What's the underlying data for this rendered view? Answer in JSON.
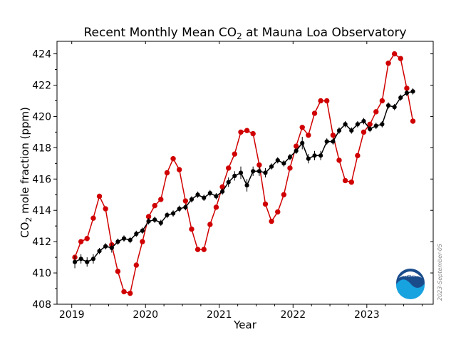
{
  "chart_data": {
    "type": "line",
    "title": "Recent Monthly Mean CO",
    "title_subscript": "2",
    "title_suffix": " at Mauna Loa Observatory",
    "xlabel": "Year",
    "ylabel": "CO",
    "ylabel_subscript": "2",
    "ylabel_suffix": " mole fraction (ppm)",
    "xlim": [
      2018.8,
      2023.9
    ],
    "ylim": [
      408,
      424.8
    ],
    "x_ticks": [
      2019,
      2020,
      2021,
      2022,
      2023
    ],
    "y_ticks": [
      408,
      410,
      412,
      414,
      416,
      418,
      420,
      422,
      424
    ],
    "grid": false,
    "legend": "none",
    "series": [
      {
        "color": "#d00000",
        "marker": "circle",
        "x": [
          2019.042,
          2019.125,
          2019.208,
          2019.292,
          2019.375,
          2019.458,
          2019.542,
          2019.625,
          2019.708,
          2019.792,
          2019.875,
          2019.958,
          2020.042,
          2020.125,
          2020.208,
          2020.292,
          2020.375,
          2020.458,
          2020.542,
          2020.625,
          2020.708,
          2020.792,
          2020.875,
          2020.958,
          2021.042,
          2021.125,
          2021.208,
          2021.292,
          2021.375,
          2021.458,
          2021.542,
          2021.625,
          2021.708,
          2021.792,
          2021.875,
          2021.958,
          2022.042,
          2022.125,
          2022.208,
          2022.292,
          2022.375,
          2022.458,
          2022.542,
          2022.625,
          2022.708,
          2022.792,
          2022.875,
          2022.958,
          2023.042,
          2023.125,
          2023.208,
          2023.292,
          2023.375,
          2023.458,
          2023.542,
          2023.625
        ],
        "values": [
          411.0,
          412.0,
          412.2,
          413.5,
          414.9,
          414.1,
          411.8,
          410.1,
          408.8,
          408.7,
          410.5,
          412.0,
          413.6,
          414.3,
          414.7,
          416.4,
          417.3,
          416.6,
          414.6,
          412.8,
          411.5,
          411.5,
          413.1,
          414.2,
          415.5,
          416.7,
          417.6,
          419.0,
          419.1,
          418.9,
          416.9,
          414.4,
          413.3,
          413.9,
          415.0,
          416.7,
          418.1,
          419.3,
          418.8,
          420.2,
          421.0,
          421.0,
          418.8,
          417.2,
          415.9,
          415.8,
          417.5,
          419.0,
          419.5,
          420.3,
          421.0,
          423.4,
          424.0,
          423.7,
          421.8,
          419.7
        ]
      },
      {
        "color": "#000000",
        "marker": "circle",
        "error_bars": true,
        "x": [
          2019.042,
          2019.125,
          2019.208,
          2019.292,
          2019.375,
          2019.458,
          2019.542,
          2019.625,
          2019.708,
          2019.792,
          2019.875,
          2019.958,
          2020.042,
          2020.125,
          2020.208,
          2020.292,
          2020.375,
          2020.458,
          2020.542,
          2020.625,
          2020.708,
          2020.792,
          2020.875,
          2020.958,
          2021.042,
          2021.125,
          2021.208,
          2021.292,
          2021.375,
          2021.458,
          2021.542,
          2021.625,
          2021.708,
          2021.792,
          2021.875,
          2021.958,
          2022.042,
          2022.125,
          2022.208,
          2022.292,
          2022.375,
          2022.458,
          2022.542,
          2022.625,
          2022.708,
          2022.792,
          2022.875,
          2022.958,
          2023.042,
          2023.125,
          2023.208,
          2023.292,
          2023.375,
          2023.458,
          2023.542,
          2023.625
        ],
        "values": [
          410.7,
          410.9,
          410.7,
          410.9,
          411.4,
          411.7,
          411.6,
          412.0,
          412.2,
          412.1,
          412.5,
          412.7,
          413.3,
          413.4,
          413.2,
          413.7,
          413.8,
          414.1,
          414.2,
          414.7,
          415.0,
          414.8,
          415.1,
          414.9,
          415.2,
          415.8,
          416.2,
          416.4,
          415.6,
          416.5,
          416.5,
          416.4,
          416.8,
          417.2,
          417.0,
          417.4,
          417.8,
          418.3,
          417.3,
          417.5,
          417.5,
          418.4,
          418.4,
          419.1,
          419.5,
          419.1,
          419.5,
          419.7,
          419.2,
          419.4,
          419.5,
          420.7,
          420.6,
          421.2,
          421.5,
          421.6
        ],
        "errors": [
          0.4,
          0.3,
          0.3,
          0.3,
          0.2,
          0.2,
          0.3,
          0.2,
          0.2,
          0.2,
          0.2,
          0.2,
          0.2,
          0.2,
          0.2,
          0.2,
          0.2,
          0.2,
          0.2,
          0.2,
          0.2,
          0.2,
          0.2,
          0.2,
          0.2,
          0.3,
          0.3,
          0.4,
          0.4,
          0.3,
          0.3,
          0.3,
          0.2,
          0.2,
          0.2,
          0.2,
          0.2,
          0.4,
          0.3,
          0.3,
          0.3,
          0.2,
          0.2,
          0.2,
          0.2,
          0.2,
          0.2,
          0.2,
          0.2,
          0.2,
          0.2,
          0.2,
          0.2,
          0.2,
          0.2,
          0.2
        ]
      }
    ]
  },
  "logo": {
    "text": "NOAA",
    "name": "noaa-logo"
  },
  "watermark": "2023-September-05"
}
